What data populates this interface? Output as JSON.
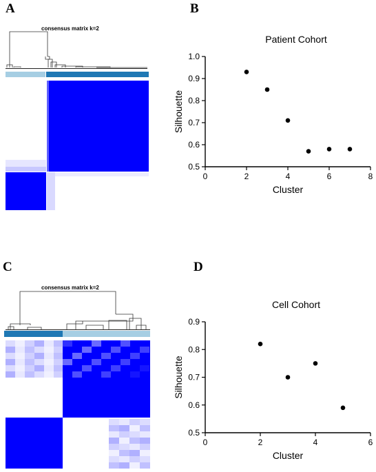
{
  "panels": {
    "a": {
      "letter": "A"
    },
    "b": {
      "letter": "B"
    },
    "c": {
      "letter": "C"
    },
    "d": {
      "letter": "D"
    }
  },
  "consensus": {
    "a": {
      "title": "consensus matrix k=2"
    },
    "c": {
      "title": "consensus matrix k=2"
    }
  },
  "colors": {
    "heat_high": "#0000ff",
    "heat_low": "#ffffff",
    "cluster_light": "#a6cee3",
    "cluster_dark": "#1f78b4"
  },
  "chart_data": [
    {
      "type": "scatter",
      "panel": "B",
      "title": "Patient Cohort",
      "xlabel": "Cluster",
      "ylabel": "Silhouette",
      "xlim": [
        0,
        8
      ],
      "ylim": [
        0.5,
        1.0
      ],
      "xticks": [
        0,
        2,
        4,
        6,
        8
      ],
      "yticks": [
        0.5,
        0.6,
        0.7,
        0.8,
        0.9,
        1.0
      ],
      "xtick_labels": [
        "0",
        "2",
        "4",
        "6",
        "8"
      ],
      "ytick_labels": [
        "0.5",
        "0.6",
        "0.7",
        "0.8",
        "0.9",
        "1.0"
      ],
      "x": [
        2,
        3,
        4,
        5,
        6,
        7
      ],
      "y": [
        0.93,
        0.85,
        0.71,
        0.57,
        0.58,
        0.58
      ],
      "grid": false
    },
    {
      "type": "scatter",
      "panel": "D",
      "title": "Cell Cohort",
      "xlabel": "Cluster",
      "ylabel": "Silhouette",
      "xlim": [
        0,
        6
      ],
      "ylim": [
        0.5,
        0.9
      ],
      "xticks": [
        0,
        2,
        4,
        6
      ],
      "yticks": [
        0.5,
        0.6,
        0.7,
        0.8,
        0.9
      ],
      "xtick_labels": [
        "0",
        "2",
        "4",
        "6"
      ],
      "ytick_labels": [
        "0.5",
        "0.6",
        "0.7",
        "0.8",
        "0.9"
      ],
      "x": [
        2,
        3,
        4,
        5
      ],
      "y": [
        0.82,
        0.7,
        0.75,
        0.59
      ],
      "grid": false
    }
  ]
}
